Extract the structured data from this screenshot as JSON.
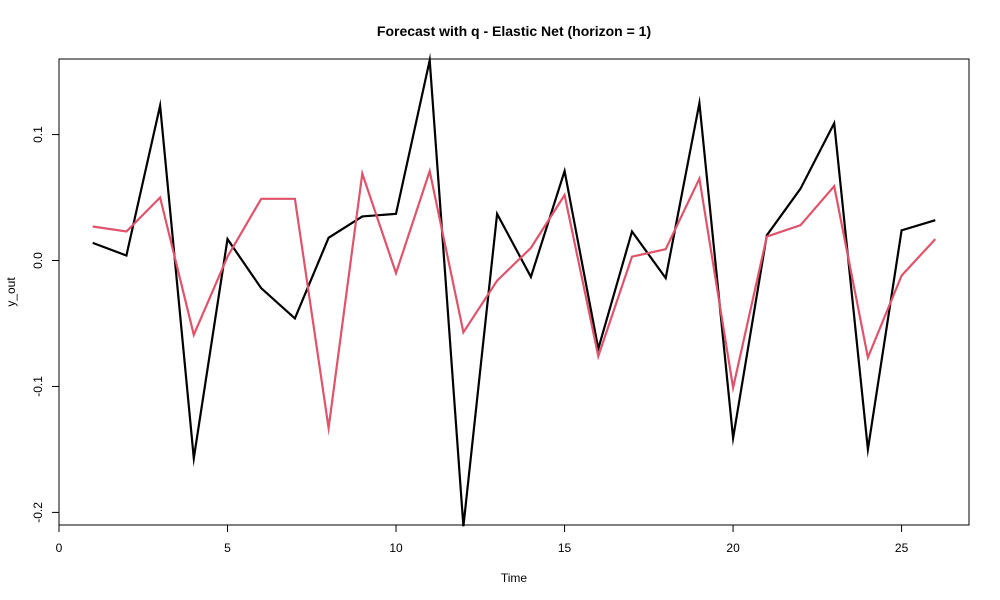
{
  "chart_data": {
    "type": "line",
    "title": "Forecast with q - Elastic Net (horizon = 1)",
    "xlabel": "Time",
    "ylabel": "y_out",
    "xlim": [
      0,
      27
    ],
    "ylim": [
      -0.21,
      0.16
    ],
    "x_ticks": [
      0,
      5,
      10,
      15,
      20,
      25
    ],
    "y_ticks": [
      -0.2,
      -0.1,
      0.0,
      0.1
    ],
    "x_tick_labels": [
      "0",
      "5",
      "10",
      "15",
      "20",
      "25"
    ],
    "y_tick_labels": [
      "-0.2",
      "-0.1",
      "0.0",
      "0.1"
    ],
    "grid": false,
    "x": [
      1,
      2,
      3,
      4,
      5,
      6,
      7,
      8,
      9,
      10,
      11,
      12,
      13,
      14,
      15,
      16,
      17,
      18,
      19,
      20,
      21,
      22,
      23,
      24,
      25,
      26
    ],
    "series": [
      {
        "color": "#000000",
        "values": [
          0.014,
          0.004,
          0.123,
          -0.157,
          0.017,
          -0.022,
          -0.046,
          0.018,
          0.035,
          0.037,
          0.159,
          -0.211,
          0.037,
          -0.013,
          0.071,
          -0.07,
          0.023,
          -0.014,
          0.125,
          -0.141,
          0.02,
          0.057,
          0.109,
          -0.15,
          0.024,
          0.032
        ]
      },
      {
        "color": "#DF536B",
        "values": [
          0.027,
          0.023,
          0.05,
          -0.059,
          0.003,
          0.049,
          0.049,
          -0.133,
          0.069,
          -0.01,
          0.071,
          -0.057,
          -0.016,
          0.01,
          0.052,
          -0.076,
          0.003,
          0.009,
          0.065,
          -0.101,
          0.019,
          0.028,
          0.059,
          -0.077,
          -0.012,
          0.017
        ]
      }
    ]
  }
}
